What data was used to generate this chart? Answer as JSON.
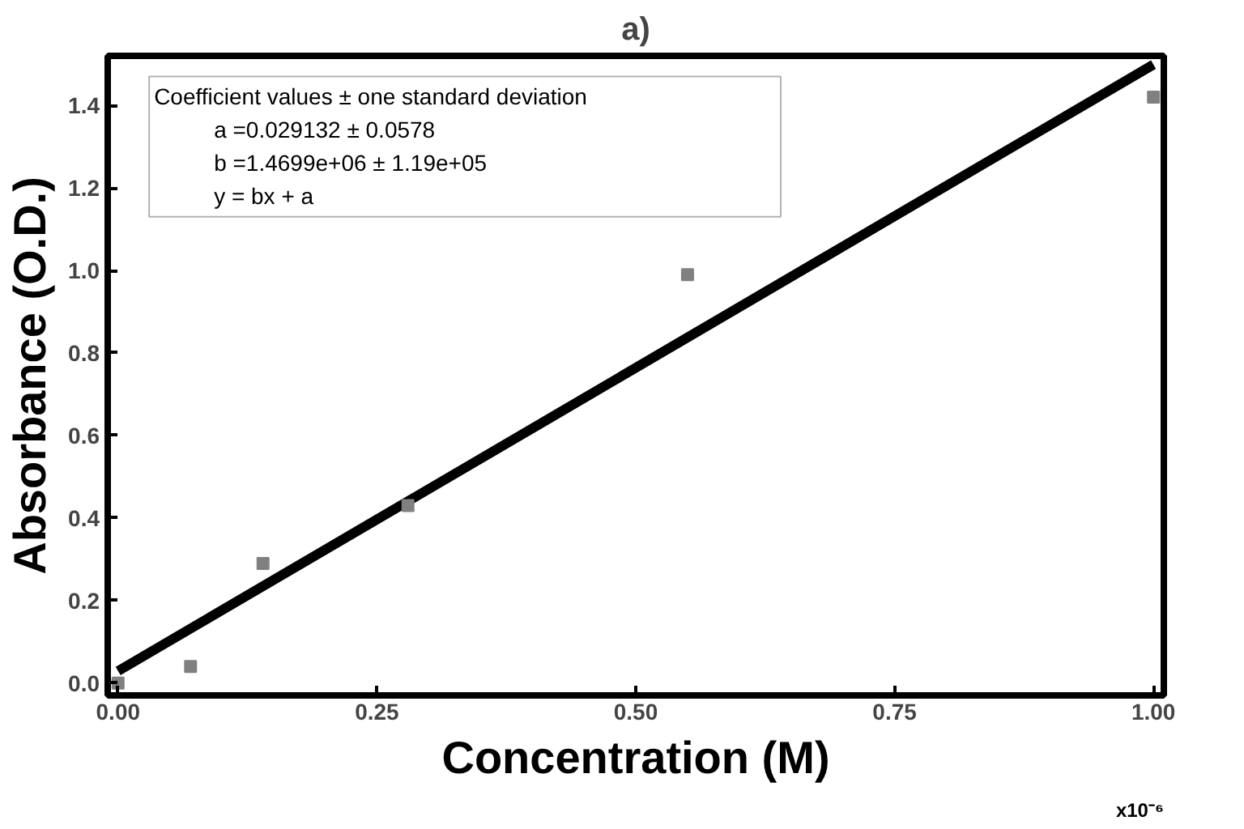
{
  "chart_data": {
    "type": "scatter",
    "title": "a)",
    "xlabel": "Concentration (M)",
    "ylabel": "Absorbance (O.D.)",
    "xlim": [
      -0.01,
      1.01
    ],
    "ylim": [
      -0.03,
      1.52
    ],
    "xticks": [
      {
        "value": 0,
        "label": "0.00"
      },
      {
        "value": 0.25,
        "label": "0.25"
      },
      {
        "value": 0.5,
        "label": "0.50"
      },
      {
        "value": 0.75,
        "label": "0.75"
      },
      {
        "value": 1.0,
        "label": "1.00"
      }
    ],
    "yticks": [
      {
        "value": 0,
        "label": "0.0"
      },
      {
        "value": 0.2,
        "label": "0.2"
      },
      {
        "value": 0.4,
        "label": "0.4"
      },
      {
        "value": 0.6,
        "label": "0.6"
      },
      {
        "value": 0.8,
        "label": "0.8"
      },
      {
        "value": 1.0,
        "label": "1.0"
      },
      {
        "value": 1.2,
        "label": "1.2"
      },
      {
        "value": 1.4,
        "label": "1.4"
      }
    ],
    "marker": "square",
    "grid": false,
    "series": [
      {
        "color": "#808080",
        "x": [
          0,
          0.07,
          0.14,
          0.28,
          0.55,
          1.0
        ],
        "values": [
          0.0,
          0.04,
          0.29,
          0.43,
          0.99,
          1.42
        ]
      },
      {
        "type": "line",
        "color": "#000000",
        "x": [
          0,
          1.0
        ],
        "values": [
          0.029,
          1.499
        ],
        "marker": "none"
      }
    ],
    "annotations": [
      "Coefficient values ± one standard deviation",
      "a          =0.029132 ± 0.0578",
      "b          =1.4699e+06 ± 1.19e+05",
      "y = bx + a",
      "x10⁻⁶"
    ]
  }
}
